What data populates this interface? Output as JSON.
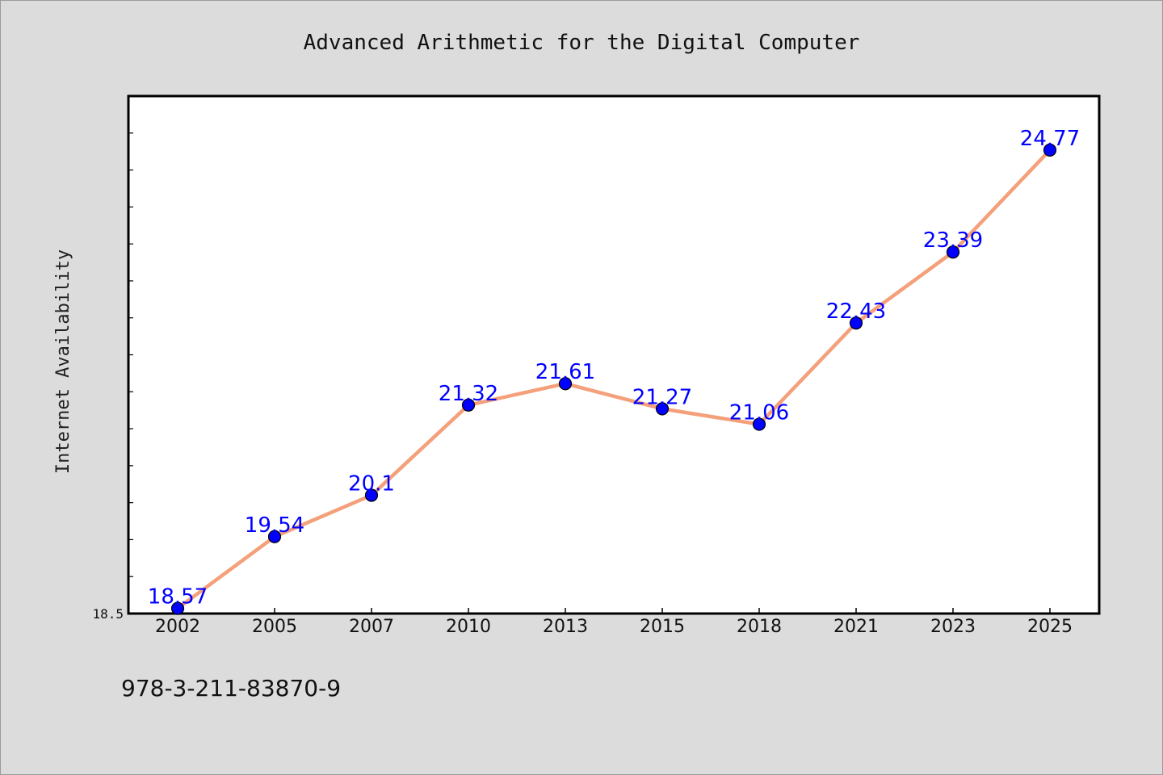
{
  "chart_data": {
    "type": "line",
    "title": "Advanced Arithmetic for the Digital Computer",
    "xlabel": "",
    "ylabel": "Internet Availability",
    "categories": [
      "2002",
      "2005",
      "2007",
      "2010",
      "2013",
      "2015",
      "2018",
      "2021",
      "2023",
      "2025"
    ],
    "values": [
      18.57,
      19.54,
      20.1,
      21.32,
      21.61,
      21.27,
      21.06,
      22.43,
      23.39,
      24.77
    ],
    "data_labels": [
      "18.57",
      "19.54",
      "20.1",
      "21.32",
      "21.61",
      "21.27",
      "21.06",
      "22.43",
      "23.39",
      "24.77"
    ],
    "y_tick_label": "18.5",
    "ylim": [
      18.5,
      25.5
    ],
    "grid": false,
    "line_color": "#f4a07a",
    "marker_color": "#0000ff",
    "label_color": "#0000ff"
  },
  "footer": {
    "isbn": "978-3-211-83870-9"
  }
}
